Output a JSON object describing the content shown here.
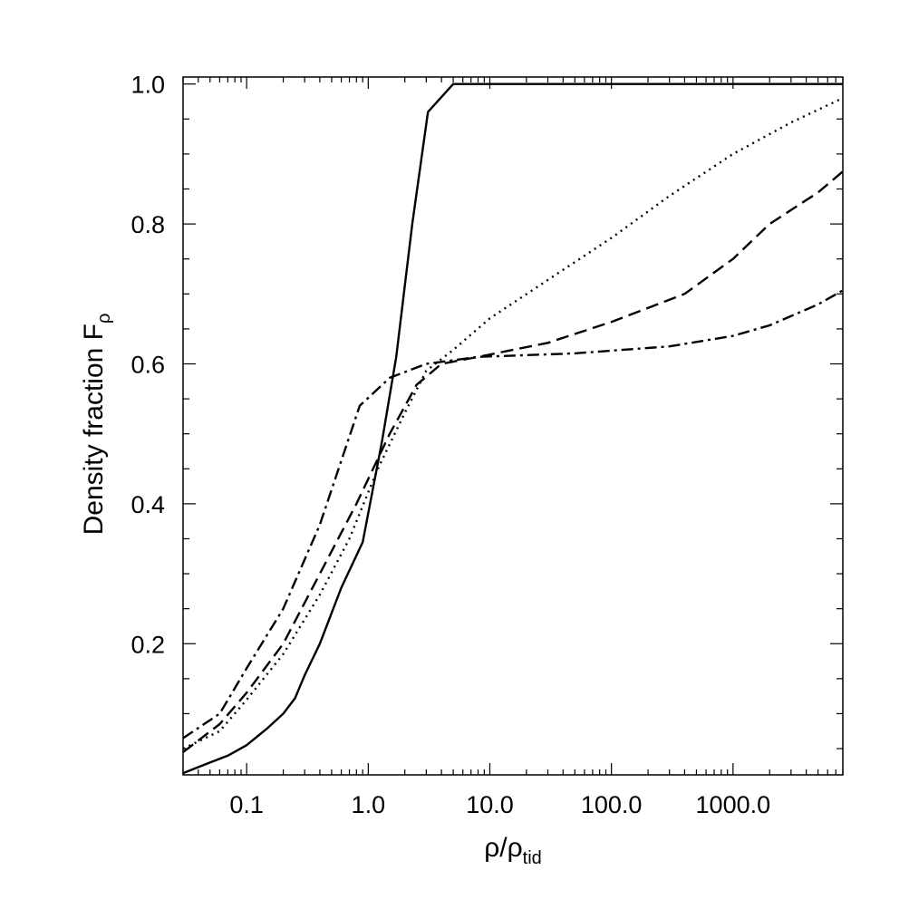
{
  "chart_data": {
    "type": "line",
    "title": "",
    "x_scale": "log",
    "xlim": [
      0.03,
      8000
    ],
    "ylim": [
      0.0125,
      1.01
    ],
    "xlabel": {
      "main": "ρ/ρ",
      "sub": "tid"
    },
    "ylabel": {
      "main": "Density fraction F",
      "sub": "ρ"
    },
    "x_ticks": [
      {
        "value": 0.1,
        "label": "0.1"
      },
      {
        "value": 1,
        "label": "1.0"
      },
      {
        "value": 10,
        "label": "10.0"
      },
      {
        "value": 100,
        "label": "100.0"
      },
      {
        "value": 1000,
        "label": "1000.0"
      }
    ],
    "y_ticks": [
      {
        "value": 0.2,
        "label": "0.2"
      },
      {
        "value": 0.4,
        "label": "0.4"
      },
      {
        "value": 0.6,
        "label": "0.6"
      },
      {
        "value": 0.8,
        "label": "0.8"
      },
      {
        "value": 1.0,
        "label": "1.0"
      }
    ],
    "grid": false,
    "series": [
      {
        "style": "solid",
        "points": [
          [
            0.03,
            0.015
          ],
          [
            0.045,
            0.027
          ],
          [
            0.07,
            0.04
          ],
          [
            0.1,
            0.055
          ],
          [
            0.15,
            0.08
          ],
          [
            0.2,
            0.1
          ],
          [
            0.25,
            0.122
          ],
          [
            0.3,
            0.155
          ],
          [
            0.4,
            0.2
          ],
          [
            0.6,
            0.28
          ],
          [
            0.9,
            0.345
          ],
          [
            1.3,
            0.49
          ],
          [
            1.7,
            0.61
          ],
          [
            2.3,
            0.8
          ],
          [
            3.1,
            0.96
          ],
          [
            5,
            1.0
          ],
          [
            8000,
            1.0
          ]
        ]
      },
      {
        "style": "dotted",
        "points": [
          [
            0.03,
            0.05
          ],
          [
            0.06,
            0.075
          ],
          [
            0.1,
            0.12
          ],
          [
            0.2,
            0.185
          ],
          [
            0.4,
            0.27
          ],
          [
            0.7,
            0.35
          ],
          [
            1.2,
            0.45
          ],
          [
            2,
            0.53
          ],
          [
            3,
            0.59
          ],
          [
            5,
            0.62
          ],
          [
            10,
            0.665
          ],
          [
            30,
            0.72
          ],
          [
            100,
            0.78
          ],
          [
            300,
            0.84
          ],
          [
            1000,
            0.9
          ],
          [
            3000,
            0.945
          ],
          [
            8000,
            0.98
          ]
        ]
      },
      {
        "style": "dashed",
        "points": [
          [
            0.03,
            0.045
          ],
          [
            0.06,
            0.085
          ],
          [
            0.1,
            0.13
          ],
          [
            0.2,
            0.2
          ],
          [
            0.4,
            0.3
          ],
          [
            0.8,
            0.4
          ],
          [
            1.5,
            0.5
          ],
          [
            2.5,
            0.57
          ],
          [
            4,
            0.6
          ],
          [
            8,
            0.61
          ],
          [
            30,
            0.63
          ],
          [
            100,
            0.66
          ],
          [
            400,
            0.7
          ],
          [
            1000,
            0.75
          ],
          [
            2000,
            0.8
          ],
          [
            5000,
            0.845
          ],
          [
            8000,
            0.875
          ]
        ]
      },
      {
        "style": "dashdot",
        "points": [
          [
            0.03,
            0.065
          ],
          [
            0.06,
            0.1
          ],
          [
            0.1,
            0.165
          ],
          [
            0.2,
            0.25
          ],
          [
            0.4,
            0.37
          ],
          [
            0.85,
            0.54
          ],
          [
            1.5,
            0.58
          ],
          [
            3,
            0.6
          ],
          [
            8,
            0.61
          ],
          [
            50,
            0.615
          ],
          [
            300,
            0.625
          ],
          [
            1000,
            0.64
          ],
          [
            2000,
            0.655
          ],
          [
            5000,
            0.685
          ],
          [
            8000,
            0.705
          ]
        ]
      }
    ]
  }
}
